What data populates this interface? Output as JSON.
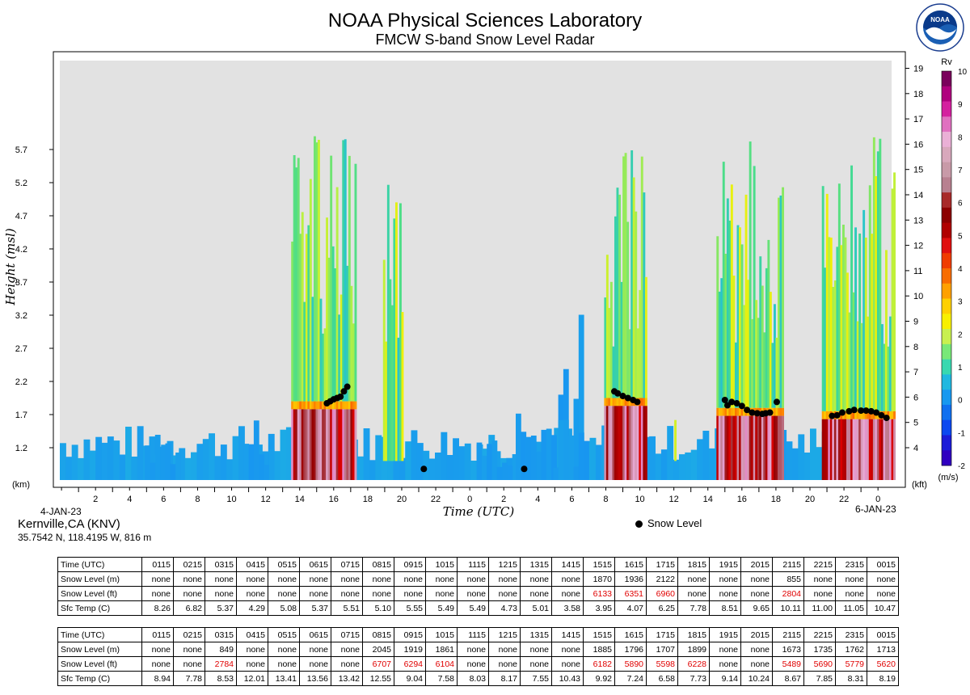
{
  "header": {
    "title": "NOAA Physical Sciences Laboratory",
    "subtitle": "FMCW S-band Snow Level Radar",
    "logo_text": "NOAA"
  },
  "chart_data": {
    "type": "heatmap",
    "ylabel": "Height (msl)",
    "xlabel": "Time (UTC)",
    "y_unit_left": "(km)",
    "y_unit_right": "(kft)",
    "yticks_km": [
      "1.2",
      "1.7",
      "2.2",
      "2.7",
      "3.2",
      "3.7",
      "4.2",
      "4.7",
      "5.2",
      "5.7"
    ],
    "yticks_kft": [
      "4",
      "5",
      "6",
      "7",
      "8",
      "9",
      "10",
      "11",
      "12",
      "13",
      "14",
      "15",
      "16",
      "17",
      "18",
      "19"
    ],
    "xticks": [
      "2",
      "4",
      "6",
      "8",
      "10",
      "12",
      "14",
      "16",
      "18",
      "20",
      "22",
      "0",
      "2",
      "4",
      "6",
      "8",
      "10",
      "12",
      "14",
      "16",
      "18",
      "20",
      "22",
      "0"
    ],
    "date_start": "4-JAN-23",
    "date_end": "6-JAN-23",
    "colorbar": {
      "label": "Rv",
      "unit": "(m/s)",
      "ticks": [
        "10",
        "9",
        "8",
        "7",
        "6",
        "5",
        "4",
        "3",
        "2",
        "1",
        "0",
        "-1",
        "-2"
      ],
      "colors": [
        "#7a005c",
        "#b0007e",
        "#d4209f",
        "#e070c0",
        "#eab0d6",
        "#d8a8bc",
        "#c89aa8",
        "#b88090",
        "#a82a2a",
        "#8c0000",
        "#b00000",
        "#e01010",
        "#f03c00",
        "#f86c00",
        "#ffa000",
        "#ffd000",
        "#f8f000",
        "#c8f050",
        "#78e878",
        "#38d8b0",
        "#20b8e0",
        "#1898f0",
        "#1070f0",
        "#0c48f0",
        "#1c1cd8",
        "#3000c0"
      ]
    },
    "legend": "Snow Level",
    "snow_level_points_km": [
      {
        "t": 15.7,
        "h": 1.87
      },
      {
        "t": 15.9,
        "h": 1.9
      },
      {
        "t": 16.1,
        "h": 1.93
      },
      {
        "t": 16.3,
        "h": 1.95
      },
      {
        "t": 16.5,
        "h": 1.97
      },
      {
        "t": 16.7,
        "h": 2.05
      },
      {
        "t": 16.9,
        "h": 2.12
      },
      {
        "t": 21.4,
        "h": 0.88
      },
      {
        "t": 27.3,
        "h": 0.88
      },
      {
        "t": 32.6,
        "h": 2.05
      },
      {
        "t": 32.8,
        "h": 2.02
      },
      {
        "t": 33.1,
        "h": 1.98
      },
      {
        "t": 33.4,
        "h": 1.95
      },
      {
        "t": 33.7,
        "h": 1.92
      },
      {
        "t": 33.95,
        "h": 1.89
      },
      {
        "t": 39.1,
        "h": 1.92
      },
      {
        "t": 39.25,
        "h": 1.84
      },
      {
        "t": 39.5,
        "h": 1.89
      },
      {
        "t": 39.8,
        "h": 1.87
      },
      {
        "t": 40.1,
        "h": 1.83
      },
      {
        "t": 40.4,
        "h": 1.77
      },
      {
        "t": 40.7,
        "h": 1.73
      },
      {
        "t": 41.0,
        "h": 1.72
      },
      {
        "t": 41.3,
        "h": 1.71
      },
      {
        "t": 41.5,
        "h": 1.72
      },
      {
        "t": 41.75,
        "h": 1.73
      },
      {
        "t": 42.15,
        "h": 1.89
      },
      {
        "t": 45.4,
        "h": 1.68
      },
      {
        "t": 45.7,
        "h": 1.69
      },
      {
        "t": 46.0,
        "h": 1.73
      },
      {
        "t": 46.4,
        "h": 1.75
      },
      {
        "t": 46.7,
        "h": 1.77
      },
      {
        "t": 47.1,
        "h": 1.76
      },
      {
        "t": 47.4,
        "h": 1.76
      },
      {
        "t": 47.7,
        "h": 1.75
      },
      {
        "t": 48.0,
        "h": 1.73
      },
      {
        "t": 48.3,
        "h": 1.69
      },
      {
        "t": 48.6,
        "h": 1.65
      }
    ]
  },
  "station": {
    "name": "Kernville,CA (KNV)",
    "coords": "35.7542 N, 118.4195 W, 816 m"
  },
  "tables": [
    {
      "rows": [
        {
          "label": "Time (UTC)",
          "values": [
            "0115",
            "0215",
            "0315",
            "0415",
            "0515",
            "0615",
            "0715",
            "0815",
            "0915",
            "1015",
            "1115",
            "1215",
            "1315",
            "1415",
            "1515",
            "1615",
            "1715",
            "1815",
            "1915",
            "2015",
            "2115",
            "2215",
            "2315",
            "0015"
          ]
        },
        {
          "label": "Snow Level (m)",
          "values": [
            "none",
            "none",
            "none",
            "none",
            "none",
            "none",
            "none",
            "none",
            "none",
            "none",
            "none",
            "none",
            "none",
            "none",
            "1870",
            "1936",
            "2122",
            "none",
            "none",
            "none",
            "855",
            "none",
            "none",
            "none"
          ]
        },
        {
          "label": "Snow Level (ft)",
          "values": [
            "none",
            "none",
            "none",
            "none",
            "none",
            "none",
            "none",
            "none",
            "none",
            "none",
            "none",
            "none",
            "none",
            "none",
            "6133",
            "6351",
            "6960",
            "none",
            "none",
            "none",
            "2804",
            "none",
            "none",
            "none"
          ]
        },
        {
          "label": "Sfc Temp (C)",
          "values": [
            "8.26",
            "6.82",
            "5.37",
            "4.29",
            "5.08",
            "5.37",
            "5.51",
            "5.10",
            "5.55",
            "5.49",
            "5.49",
            "4.73",
            "5.01",
            "3.58",
            "3.95",
            "4.07",
            "6.25",
            "7.78",
            "8.51",
            "9.65",
            "10.11",
            "11.00",
            "11.05",
            "10.47"
          ]
        }
      ]
    },
    {
      "rows": [
        {
          "label": "Time (UTC)",
          "values": [
            "0115",
            "0215",
            "0315",
            "0415",
            "0515",
            "0615",
            "0715",
            "0815",
            "0915",
            "1015",
            "1115",
            "1215",
            "1315",
            "1415",
            "1515",
            "1615",
            "1715",
            "1815",
            "1915",
            "2015",
            "2115",
            "2215",
            "2315",
            "0015"
          ]
        },
        {
          "label": "Snow Level (m)",
          "values": [
            "none",
            "none",
            "849",
            "none",
            "none",
            "none",
            "none",
            "2045",
            "1919",
            "1861",
            "none",
            "none",
            "none",
            "none",
            "1885",
            "1796",
            "1707",
            "1899",
            "none",
            "none",
            "1673",
            "1735",
            "1762",
            "1713"
          ]
        },
        {
          "label": "Snow Level (ft)",
          "values": [
            "none",
            "none",
            "2784",
            "none",
            "none",
            "none",
            "none",
            "6707",
            "6294",
            "6104",
            "none",
            "none",
            "none",
            "none",
            "6182",
            "5890",
            "5598",
            "6228",
            "none",
            "none",
            "5489",
            "5690",
            "5779",
            "5620"
          ]
        },
        {
          "label": "Sfc Temp (C)",
          "values": [
            "8.94",
            "7.78",
            "8.53",
            "12.01",
            "13.41",
            "13.56",
            "13.42",
            "12.55",
            "9.04",
            "7.58",
            "8.03",
            "8.17",
            "7.55",
            "10.43",
            "9.92",
            "7.24",
            "6.58",
            "7.73",
            "9.14",
            "10.24",
            "8.67",
            "7.85",
            "8.31",
            "8.19"
          ]
        }
      ]
    }
  ]
}
